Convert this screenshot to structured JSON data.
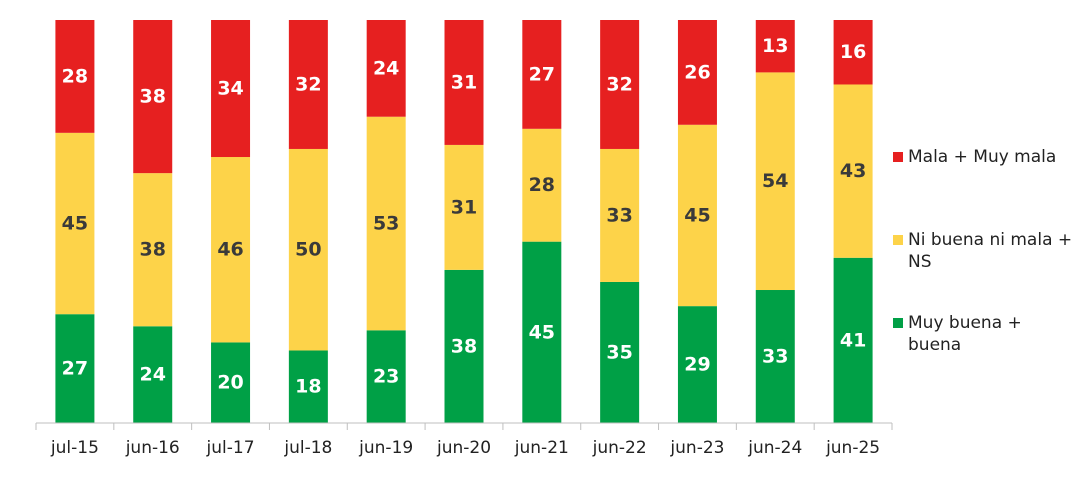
{
  "chart_data": {
    "type": "bar",
    "stacked": true,
    "categories": [
      "jul-15",
      "jun-16",
      "jul-17",
      "jul-18",
      "jun-19",
      "jun-20",
      "jun-21",
      "jun-22",
      "jun-23",
      "jun-24",
      "jun-25"
    ],
    "series": [
      {
        "name": "Muy buena + buena",
        "color": "#00A046",
        "label_color": "#ffffff",
        "values": [
          27,
          24,
          20,
          18,
          23,
          38,
          45,
          35,
          29,
          33,
          41
        ]
      },
      {
        "name": "Ni buena ni mala + NS",
        "color": "#FDD349",
        "label_color": "#3a3a3a",
        "values": [
          45,
          38,
          46,
          50,
          53,
          31,
          28,
          33,
          45,
          54,
          43
        ]
      },
      {
        "name": "Mala + Muy mala",
        "color": "#E62020",
        "label_color": "#ffffff",
        "values": [
          28,
          38,
          34,
          32,
          24,
          31,
          27,
          32,
          26,
          13,
          16
        ]
      }
    ],
    "ylim": [
      0,
      100
    ],
    "grid": false,
    "legend_position": "right",
    "legend_order": [
      "Mala + Muy mala",
      "Ni buena ni mala + NS",
      "Muy buena + buena"
    ]
  }
}
